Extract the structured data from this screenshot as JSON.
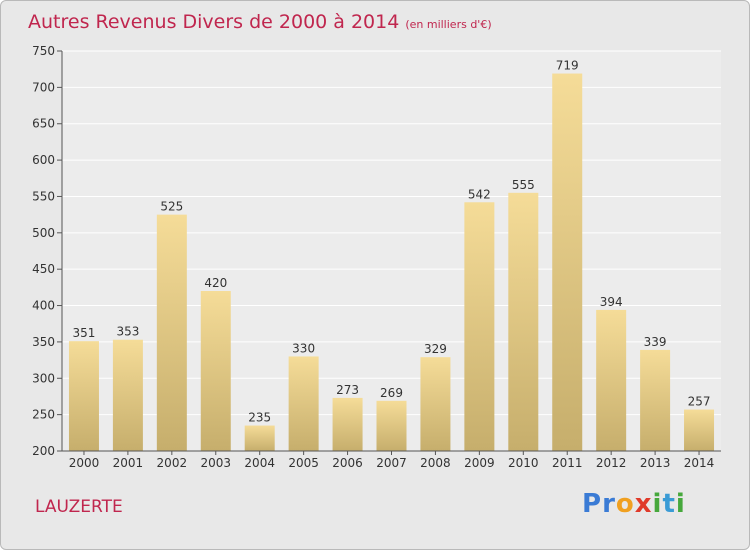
{
  "header": {
    "title": "Autres Revenus Divers de 2000 à 2014",
    "subtitle": "(en milliers d'€)"
  },
  "footer": {
    "commune": "LAUZERTE",
    "logo_letters": [
      {
        "ch": "P",
        "color": "#3a7bd5"
      },
      {
        "ch": "r",
        "color": "#3a7bd5"
      },
      {
        "ch": "o",
        "color": "#f0a020"
      },
      {
        "ch": "x",
        "color": "#e03a2a"
      },
      {
        "ch": "i",
        "color": "#46a83c"
      },
      {
        "ch": "t",
        "color": "#3a9bd5"
      },
      {
        "ch": "i",
        "color": "#46a83c"
      }
    ]
  },
  "colors": {
    "title": "#c0264e",
    "bar_light": "#f5dc98",
    "bar_dark": "#c6ae6c",
    "plot_bg": "#ececec",
    "grid": "#ffffff",
    "text": "#333333"
  },
  "chart_data": {
    "type": "bar",
    "title": "Autres Revenus Divers de 2000 à 2014",
    "subtitle": "(en milliers d'€)",
    "xlabel": "",
    "ylabel": "",
    "categories": [
      "2000",
      "2001",
      "2002",
      "2003",
      "2004",
      "2005",
      "2006",
      "2007",
      "2008",
      "2009",
      "2010",
      "2011",
      "2012",
      "2013",
      "2014"
    ],
    "values": [
      351,
      353,
      525,
      420,
      235,
      330,
      273,
      269,
      329,
      542,
      555,
      719,
      394,
      339,
      257
    ],
    "ylim": [
      200,
      750
    ],
    "yticks": [
      200,
      250,
      300,
      350,
      400,
      450,
      500,
      550,
      600,
      650,
      700,
      750
    ],
    "grid": true,
    "legend": "none"
  }
}
